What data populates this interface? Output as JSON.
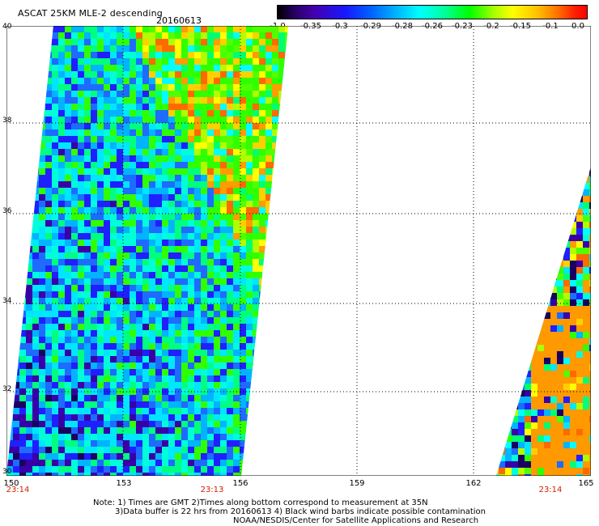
{
  "header": {
    "title": "ASCAT 25KM MLE-2 descending",
    "date": "20160613"
  },
  "colorbar": {
    "ticks": [
      "-1.0",
      "-0.35",
      "-0.3",
      "-0.29",
      "-0.28",
      "-0.26",
      "-0.23",
      "-0.2",
      "-0.15",
      "-0.1",
      "0.0"
    ]
  },
  "axes": {
    "lat_labels": [
      "40",
      "38",
      "36",
      "34",
      "32",
      "30"
    ],
    "lon_labels": [
      "150",
      "153",
      "156",
      "159",
      "162",
      "165"
    ],
    "time_labels": [
      "23:14",
      "23:13",
      "23:14"
    ]
  },
  "notes": {
    "line1": "Note: 1) Times are GMT 2)Times along bottom correspond to measurement at 35N",
    "line2": "3)Data buffer is 22 hrs from 20160613 4) Black wind barbs indicate possible contamination",
    "line3": "NOAA/NESDIS/Center for Satellite Applications and Research"
  }
}
